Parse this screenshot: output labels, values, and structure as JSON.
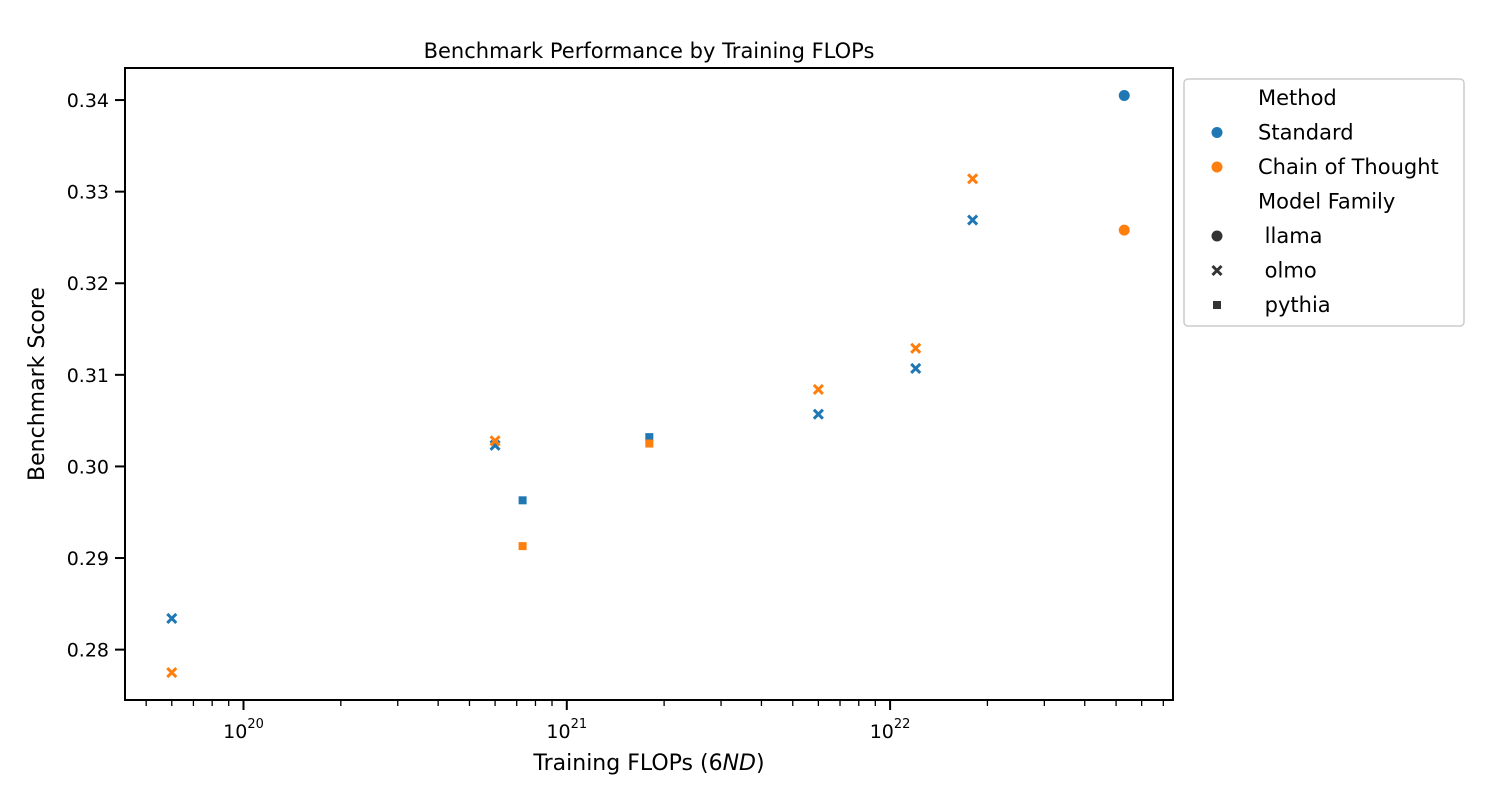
{
  "chart_data": {
    "type": "scatter",
    "title": "Benchmark Performance by Training FLOPs",
    "xlabel_prefix": "Training FLOPs (6",
    "xlabel_italic": "ND",
    "xlabel_suffix": ")",
    "ylabel": "Benchmark Score",
    "xscale": "log",
    "xlim": [
      4.3e+19,
      7.5e+22
    ],
    "ylim": [
      0.2745,
      0.3435
    ],
    "x_major_ticks": [
      {
        "value": 1e+20,
        "base": "10",
        "exp": "20"
      },
      {
        "value": 1e+21,
        "base": "10",
        "exp": "21"
      },
      {
        "value": 1e+22,
        "base": "10",
        "exp": "22"
      }
    ],
    "y_ticks": [
      {
        "value": 0.28,
        "label": "0.28"
      },
      {
        "value": 0.29,
        "label": "0.29"
      },
      {
        "value": 0.3,
        "label": "0.30"
      },
      {
        "value": 0.31,
        "label": "0.31"
      },
      {
        "value": 0.32,
        "label": "0.32"
      },
      {
        "value": 0.33,
        "label": "0.33"
      },
      {
        "value": 0.34,
        "label": "0.34"
      }
    ],
    "grid": false,
    "legend_position": "outside-right-top",
    "legend": {
      "hue_title": "Method",
      "methods": [
        {
          "key": "standard",
          "label": "Standard",
          "color": "#1f77b4"
        },
        {
          "key": "cot",
          "label": "Chain of Thought",
          "color": "#ff7f0e"
        }
      ],
      "style_title": "Model Family",
      "families": [
        {
          "key": "llama",
          "label": " llama",
          "marker": "circle"
        },
        {
          "key": "olmo",
          "label": " olmo",
          "marker": "x"
        },
        {
          "key": "pythia",
          "label": " pythia",
          "marker": "square"
        }
      ]
    },
    "points": [
      {
        "method": "standard",
        "family": "olmo",
        "x": 6e+19,
        "y": 0.2834
      },
      {
        "method": "cot",
        "family": "olmo",
        "x": 6e+19,
        "y": 0.2775
      },
      {
        "method": "standard",
        "family": "olmo",
        "x": 6e+20,
        "y": 0.3023
      },
      {
        "method": "cot",
        "family": "olmo",
        "x": 6e+20,
        "y": 0.3028
      },
      {
        "method": "standard",
        "family": "pythia",
        "x": 7.3e+20,
        "y": 0.2963
      },
      {
        "method": "cot",
        "family": "pythia",
        "x": 7.3e+20,
        "y": 0.2913
      },
      {
        "method": "standard",
        "family": "pythia",
        "x": 1.8e+21,
        "y": 0.3032
      },
      {
        "method": "cot",
        "family": "pythia",
        "x": 1.8e+21,
        "y": 0.3025
      },
      {
        "method": "standard",
        "family": "olmo",
        "x": 6e+21,
        "y": 0.3057
      },
      {
        "method": "cot",
        "family": "olmo",
        "x": 6e+21,
        "y": 0.3084
      },
      {
        "method": "standard",
        "family": "olmo",
        "x": 1.2e+22,
        "y": 0.3107
      },
      {
        "method": "cot",
        "family": "olmo",
        "x": 1.2e+22,
        "y": 0.3129
      },
      {
        "method": "standard",
        "family": "olmo",
        "x": 1.8e+22,
        "y": 0.3269
      },
      {
        "method": "cot",
        "family": "olmo",
        "x": 1.8e+22,
        "y": 0.3314
      },
      {
        "method": "standard",
        "family": "llama",
        "x": 5.3e+22,
        "y": 0.3405
      },
      {
        "method": "cot",
        "family": "llama",
        "x": 5.3e+22,
        "y": 0.3258
      }
    ]
  }
}
